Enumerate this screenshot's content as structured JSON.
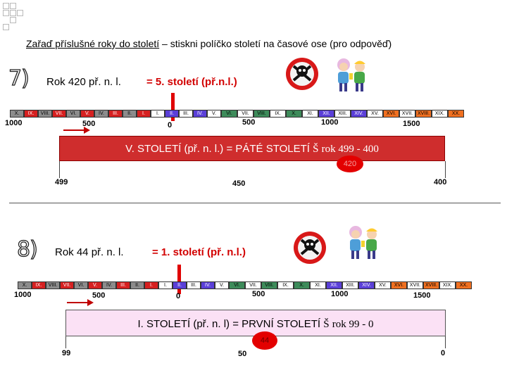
{
  "heading": {
    "main": "Zařaď příslušné roky do století",
    "dash": " – ",
    "hint": "stiskni políčko století na časové ose (pro odpověď)"
  },
  "tasks": [
    {
      "number": "7)",
      "text": "Rok 420 př. n. l.",
      "answer": "= 5. století (př.n.l.)",
      "timeline_cells": [
        "X.",
        "IX.",
        "VIII.",
        "VII.",
        "VI.",
        "V.",
        "IV.",
        "III.",
        "II.",
        "I.",
        "I.",
        "II.",
        "III.",
        "IV.",
        "V.",
        "VI.",
        "VII.",
        "VIII.",
        "IX.",
        "X.",
        "XI.",
        "XII.",
        "XIII.",
        "XIV.",
        "XV.",
        "XVI.",
        "XVII.",
        "XVIII.",
        "XIX.",
        "XX."
      ],
      "ticks": [
        "1000",
        "500",
        "0",
        "500",
        "1000",
        "1500"
      ],
      "century_box": {
        "text": "V. STOLETÍ (př. n. l.) = PÁTÉ STOLETÍ",
        "arrow": "Š",
        "range": "rok 499 - 400"
      },
      "year": "420",
      "scale": [
        "499",
        "450",
        "400"
      ]
    },
    {
      "number": "8)",
      "text": "Rok 44 př. n. l.",
      "answer": "= 1. století (př. n.l.)",
      "timeline_cells": [
        "X.",
        "IX.",
        "VIII.",
        "VII.",
        "VI.",
        "V.",
        "IV.",
        "III.",
        "II.",
        "I.",
        "I.",
        "II.",
        "III.",
        "IV.",
        "V.",
        "VI.",
        "VII.",
        "VIII.",
        "IX.",
        "X.",
        "XI.",
        "XII.",
        "XIII.",
        "XIV.",
        "XV.",
        "XVI.",
        "XVII.",
        "XVIII.",
        "XIX.",
        "XX."
      ],
      "ticks": [
        "1000",
        "500",
        "0",
        "500",
        "1000",
        "1500"
      ],
      "century_box": {
        "text": "I. STOLETÍ (př. n. l) = PRVNÍ STOLETÍ",
        "arrow": "Š",
        "range": "rok 99 - 0"
      },
      "year": "44",
      "scale": [
        "99",
        "50",
        "0"
      ]
    }
  ],
  "colors": {
    "bc_red": "#d62020",
    "bc_gray": "#8c8c8c",
    "ad_purple": "#5a3fd8",
    "ad_white": "#ffffff",
    "ad_green": "#3d8b5a",
    "ad_orange": "#f07020"
  },
  "icons": [
    "poison-skull-icon",
    "kids-cartoon-icon"
  ]
}
